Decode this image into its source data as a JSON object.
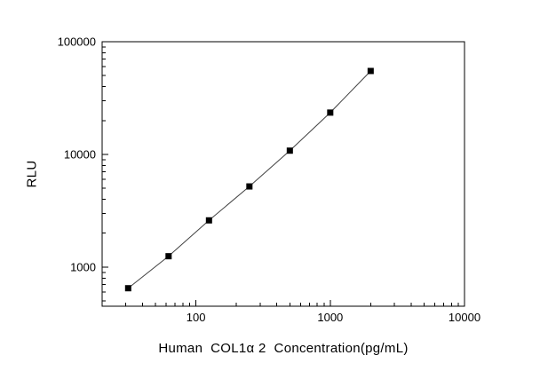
{
  "chart_data": {
    "type": "scatter",
    "title": "",
    "xlabel": "Human  COL1α 2  Concentration(pg/mL)",
    "ylabel": "RLU",
    "xscale": "log",
    "yscale": "log",
    "xlim": [
      20,
      10000
    ],
    "ylim": [
      450,
      100000
    ],
    "x": [
      31.25,
      62.5,
      125,
      250,
      500,
      1000,
      2000
    ],
    "y": [
      650,
      1250,
      2600,
      5200,
      10800,
      23500,
      55000
    ],
    "x_major_ticks": [
      100,
      1000,
      10000
    ],
    "y_major_ticks": [
      1000,
      10000,
      100000
    ],
    "x_tick_labels": [
      "100",
      "1000",
      "10000"
    ],
    "y_tick_labels": [
      "1000",
      "10000",
      "100000"
    ],
    "grid": false,
    "legend": "none",
    "marker": "filled-square",
    "marker_color": "#000000",
    "line_color": "#404040",
    "axis_color": "#000000",
    "background": "#ffffff"
  }
}
